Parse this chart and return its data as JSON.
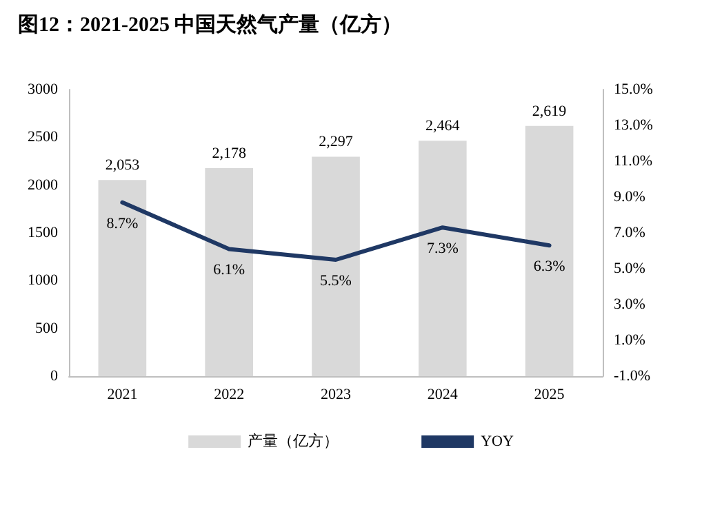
{
  "chart_data": {
    "type": "bar",
    "title": "图12：2021-2025 中国天然气产量（亿方）",
    "categories": [
      "2021",
      "2022",
      "2023",
      "2024",
      "2025"
    ],
    "series": [
      {
        "name": "产量（亿方）",
        "color": "#d9d9d9",
        "values": [
          2053,
          2178,
          2297,
          2464,
          2619
        ],
        "value_labels": [
          "2,053",
          "2,178",
          "2,297",
          "2,464",
          "2,619"
        ]
      },
      {
        "name": "YOY",
        "type": "line",
        "axis": "y2",
        "color": "#1f3864",
        "marker": "none",
        "values": [
          8.7,
          6.1,
          5.5,
          7.3,
          6.3
        ],
        "value_labels": [
          "8.7%",
          "6.1%",
          "5.5%",
          "7.3%",
          "6.3%"
        ]
      }
    ],
    "ylim": [
      0,
      3000
    ],
    "yticks": [
      0,
      500,
      1000,
      1500,
      2000,
      2500,
      3000
    ],
    "y2lim": [
      -1,
      15
    ],
    "y2ticks": [
      {
        "value": -1,
        "label": "-1.0%"
      },
      {
        "value": 1,
        "label": "1.0%"
      },
      {
        "value": 3,
        "label": "3.0%"
      },
      {
        "value": 5,
        "label": "5.0%"
      },
      {
        "value": 7,
        "label": "7.0%"
      },
      {
        "value": 9,
        "label": "9.0%"
      },
      {
        "value": 11,
        "label": "11.0%"
      },
      {
        "value": 13,
        "label": "13.0%"
      },
      {
        "value": 15,
        "label": "15.0%"
      }
    ],
    "grid": false,
    "legend": "bottom"
  }
}
